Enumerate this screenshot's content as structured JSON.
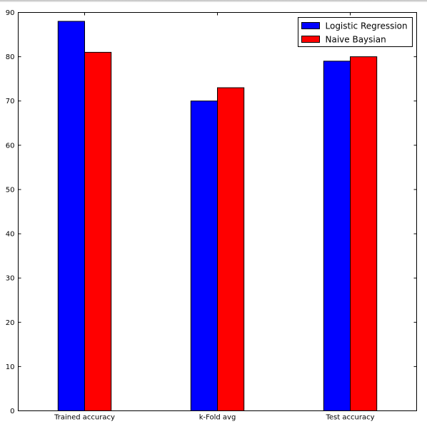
{
  "chart_data": {
    "type": "bar",
    "title": "",
    "xlabel": "",
    "ylabel": "",
    "categories": [
      "Trained accuracy",
      "k-Fold avg",
      "Test accuracy"
    ],
    "series": [
      {
        "name": "Logistic Regression",
        "color": "#0000ff",
        "values": [
          88,
          70,
          79
        ]
      },
      {
        "name": "Naive Baysian",
        "color": "#ff0000",
        "values": [
          81,
          73,
          80
        ]
      }
    ],
    "ylim": [
      0,
      90
    ],
    "yticks": [
      0,
      10,
      20,
      30,
      40,
      50,
      60,
      70,
      80,
      90
    ],
    "grid": false,
    "legend_position": "top-right"
  }
}
